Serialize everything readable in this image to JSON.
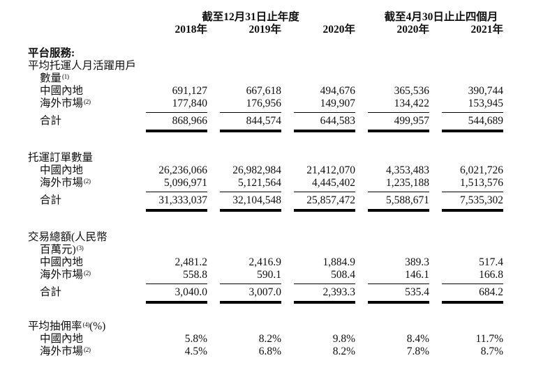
{
  "colors": {
    "background": "#ffffff",
    "text": "#0f0f0f",
    "rule": "#000000"
  },
  "header": {
    "group1": {
      "label": "截至12月31日止年度",
      "years": [
        "2018年",
        "2019年",
        "2020年"
      ]
    },
    "group2": {
      "label": "截至4月30日止止四個月",
      "years": [
        "2020年",
        "2021年"
      ]
    }
  },
  "sections": [
    {
      "heading": {
        "text": "平台服務:"
      },
      "label_lines": [
        {
          "text": "平均托運人月活躍用戶",
          "indent": 0
        },
        {
          "text": "數量",
          "sup": "(1)",
          "indent": 1
        }
      ],
      "rows": [
        {
          "label": {
            "text": "中國內地"
          },
          "values": [
            "691,127",
            "667,618",
            "494,676",
            "365,536",
            "390,744"
          ]
        },
        {
          "label": {
            "text": "海外市場",
            "sup": "(2)"
          },
          "values": [
            "177,840",
            "176,956",
            "149,907",
            "134,422",
            "153,945"
          ]
        },
        {
          "label": {
            "text": "合計"
          },
          "total": true,
          "values": [
            "868,966",
            "844,574",
            "644,583",
            "499,957",
            "544,689"
          ]
        }
      ],
      "double_rule": true
    },
    {
      "label_lines": [
        {
          "text": "托運訂單數量",
          "indent": 0
        }
      ],
      "rows": [
        {
          "label": {
            "text": "中國內地"
          },
          "values": [
            "26,236,066",
            "26,982,984",
            "21,412,070",
            "4,353,483",
            "6,021,726"
          ]
        },
        {
          "label": {
            "text": "海外市場",
            "sup": "(2)"
          },
          "values": [
            "5,096,971",
            "5,121,564",
            "4,445,402",
            "1,235,188",
            "1,513,576"
          ]
        },
        {
          "label": {
            "text": "合計"
          },
          "total": true,
          "values": [
            "31,333,037",
            "32,104,548",
            "25,857,472",
            "5,588,671",
            "7,535,302"
          ]
        }
      ],
      "double_rule": true
    },
    {
      "label_lines": [
        {
          "text": "交易總額(人民幣",
          "indent": 0
        },
        {
          "text": "百萬元)",
          "sup": "(3)",
          "indent": 1
        }
      ],
      "rows": [
        {
          "label": {
            "text": "中國內地"
          },
          "values": [
            "2,481.2",
            "2,416.9",
            "1,884.9",
            "389.3",
            "517.4"
          ]
        },
        {
          "label": {
            "text": "海外市場",
            "sup": "(2)"
          },
          "values": [
            "558.8",
            "590.1",
            "508.4",
            "146.1",
            "166.8"
          ]
        },
        {
          "label": {
            "text": "合計"
          },
          "total": true,
          "values": [
            "3,040.0",
            "3,007.0",
            "2,393.3",
            "535.4",
            "684.2"
          ]
        }
      ],
      "double_rule": true
    },
    {
      "label_lines": [
        {
          "text": "平均抽佣率",
          "sup": "(4)",
          "suffix": "(%)",
          "indent": 0
        }
      ],
      "rows": [
        {
          "label": {
            "text": "中國內地"
          },
          "values": [
            "5.8%",
            "8.2%",
            "9.8%",
            "8.4%",
            "11.7%"
          ]
        },
        {
          "label": {
            "text": "海外市場",
            "sup": "(2)"
          },
          "values": [
            "4.5%",
            "6.8%",
            "8.2%",
            "7.8%",
            "8.7%"
          ]
        }
      ],
      "double_rule": false
    }
  ]
}
